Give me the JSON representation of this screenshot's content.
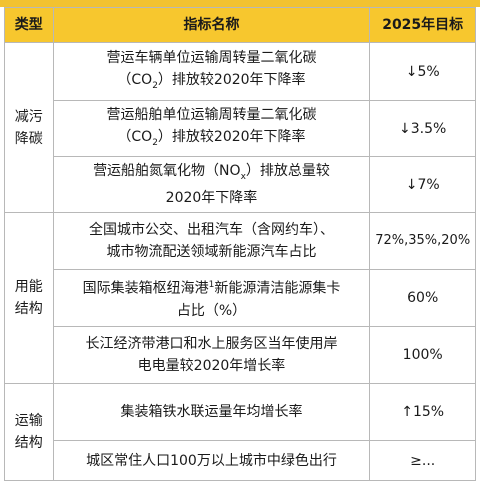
{
  "header": {
    "type_label": "类型",
    "name_label": "指标名称",
    "target_label": "2025年目标"
  },
  "groups": [
    {
      "type_line1": "减污",
      "type_line2": "降碳"
    },
    {
      "type_line1": "用能",
      "type_line2": "结构"
    },
    {
      "type_line1": "运输",
      "type_line2": "结构"
    }
  ],
  "rows": [
    {
      "line1": "营运车辆单位运输周转量二氧化碳",
      "line2_pre": "（CO",
      "line2_sub": "2",
      "line2_post": "）排放较2020年下降率",
      "target": "↓5%"
    },
    {
      "line1": "营运船舶单位运输周转量二氧化碳",
      "line2_pre": "（CO",
      "line2_sub": "2",
      "line2_post": "）排放较2020年下降率",
      "target": "↓3.5%"
    },
    {
      "line1_pre": "营运船舶氮氧化物（NO",
      "line1_sub": "x",
      "line1_post": "）排放总量较",
      "line2": "2020年下降率",
      "target": "↓7%"
    },
    {
      "line1": "全国城市公交、出租汽车（含网约车）、",
      "line2": "城市物流配送领域新能源汽车占比",
      "target": "72%,35%,20%"
    },
    {
      "line1_pre": "国际集装箱枢纽海港",
      "line1_sup": "1",
      "line1_post": "新能源清洁能源集卡",
      "line2": "占比（%）",
      "target": "60%"
    },
    {
      "line1": "长江经济带港口和水上服务区当年使用岸",
      "line2": "电电量较2020年增长率",
      "target": "100%"
    },
    {
      "line1": "集装箱铁水联运量年均增长率",
      "target": "↑15%"
    },
    {
      "line1": "城区常住人口100万以上城市中绿色出行",
      "target": "≥..."
    }
  ]
}
